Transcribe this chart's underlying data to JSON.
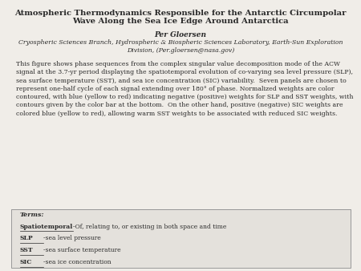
{
  "title_line1": "Atmospheric Thermodynamics Responsible for the Antarctic Circumpolar",
  "title_line2": "Wave Along the Sea Ice Edge Around Antarctica",
  "author": "Per Gloersen",
  "affiliation_line1": "Cryospheric Sciences Branch, Hydrospheric & Biospheric Sciences Laboratory, Earth-Sun Exploration",
  "affiliation_line2": "Division, (Per.gloersen@nasa.gov)",
  "body": "This figure shows phase sequences from the complex singular value decomposition mode of the ACW signal at the 3.7-yr period displaying the spatiotemporal evolution of co-varying sea level pressure (SLP), sea surface temperature (SST), and sea ice concentration (SIC) variability.  Seven panels are chosen to represent one-half cycle of each signal extending over 180° of phase. Normalized weights are color contoured, with blue (yellow to red) indicating negative (positive) weights for SLP and SST weights, with contours given by the color bar at the bottom.  On the other hand, positive (negative) SIC weights are colored blue (yellow to red), allowing warm SST weights to be associated with reduced SIC weights.",
  "terms_label": "Terms:",
  "term1_key": "Spatiotemporal",
  "term1_val": "-Of, relating to, or existing in both space and time",
  "term2_key": "SLP",
  "term2_val": "-sea level pressure",
  "term3_key": "SST",
  "term3_val": "-sea surface temperature",
  "term4_key": "SIC",
  "term4_val": "-sea ice concentration",
  "bg_color": "#f0ede8",
  "box_bg": "#e4e1dc",
  "text_color": "#2a2a2a",
  "border_color": "#999999"
}
